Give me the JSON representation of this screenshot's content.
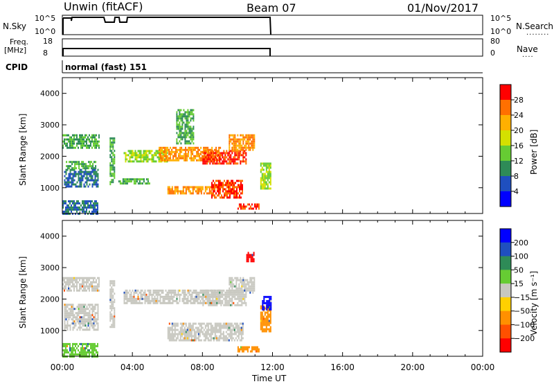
{
  "header": {
    "station": "Unwin (fitACF)",
    "beam": "Beam 07",
    "date": "01/Nov/2017"
  },
  "top_panels": {
    "nsky_label": "N.Sky",
    "nsky_ticks": [
      "10^5",
      "10^0"
    ],
    "nsearch_label": "N.Search",
    "nsearch_ticks": [
      "10^5",
      "10^0"
    ],
    "freq_label_1": "Freq.",
    "freq_label_2": "[MHz]",
    "freq_ticks": [
      "18",
      "8"
    ],
    "nave_label": "Nave",
    "nave_ticks": [
      "80",
      "0"
    ],
    "cpid_label": "CPID",
    "cpid_value": "normal (fast) 151"
  },
  "chart_data": [
    {
      "type": "heatmap",
      "panel": "power",
      "ylabel": "Slant Range [km]",
      "xlabel": "Time UT",
      "x_range_hours": [
        0,
        24
      ],
      "x_ticks": [
        "00:00",
        "04:00",
        "08:00",
        "12:00",
        "16:00",
        "20:00",
        "00:00"
      ],
      "ylim": [
        180,
        4500
      ],
      "y_ticks": [
        1000,
        2000,
        3000,
        4000
      ],
      "colorbar": {
        "label": "Power [dB]",
        "ticks": [
          "4",
          "8",
          "12",
          "16",
          "20",
          "24",
          "28"
        ],
        "colors": [
          "#0000ff",
          "#1f4fbf",
          "#2e8b57",
          "#66cc33",
          "#d4e000",
          "#ffb000",
          "#ff7000",
          "#ff0000"
        ]
      },
      "data_extent_hours": [
        0,
        12
      ],
      "regions": [
        {
          "t": [
            0.0,
            2.1
          ],
          "r": [
            2300,
            2700
          ],
          "level": 12
        },
        {
          "t": [
            0.1,
            2.0
          ],
          "r": [
            1050,
            1600
          ],
          "level": 8
        },
        {
          "t": [
            0.2,
            1.9
          ],
          "r": [
            1600,
            1850
          ],
          "level": 12
        },
        {
          "t": [
            2.7,
            3.0
          ],
          "r": [
            1100,
            2600
          ],
          "level": 12
        },
        {
          "t": [
            3.2,
            5.0
          ],
          "r": [
            1150,
            1300
          ],
          "level": 12
        },
        {
          "t": [
            3.5,
            6.0
          ],
          "r": [
            1850,
            2200
          ],
          "level": 16
        },
        {
          "t": [
            5.5,
            9.0
          ],
          "r": [
            1900,
            2300
          ],
          "level": 24
        },
        {
          "t": [
            8.0,
            10.5
          ],
          "r": [
            1800,
            2200
          ],
          "level": 28
        },
        {
          "t": [
            9.5,
            11.0
          ],
          "r": [
            2200,
            2700
          ],
          "level": 24
        },
        {
          "t": [
            6.0,
            8.5
          ],
          "r": [
            800,
            1050
          ],
          "level": 24
        },
        {
          "t": [
            8.5,
            10.3
          ],
          "r": [
            700,
            1250
          ],
          "level": 28
        },
        {
          "t": [
            10.0,
            11.2
          ],
          "r": [
            350,
            500
          ],
          "level": 28
        },
        {
          "t": [
            11.3,
            11.9
          ],
          "r": [
            1000,
            1800
          ],
          "level": 16
        },
        {
          "t": [
            6.5,
            7.5
          ],
          "r": [
            2400,
            3500
          ],
          "level": 12
        },
        {
          "t": [
            0.0,
            2.0
          ],
          "r": [
            200,
            600
          ],
          "level": 8
        }
      ]
    },
    {
      "type": "heatmap",
      "panel": "velocity",
      "ylabel": "Slant Range [km]",
      "xlabel": "Time UT",
      "x_range_hours": [
        0,
        24
      ],
      "x_ticks": [
        "00:00",
        "04:00",
        "08:00",
        "12:00",
        "16:00",
        "20:00",
        "00:00"
      ],
      "ylim": [
        180,
        4500
      ],
      "y_ticks": [
        1000,
        2000,
        3000,
        4000
      ],
      "colorbar": {
        "label": "Velocity [m s⁻¹]",
        "ticks": [
          "200",
          "100",
          "50",
          "15",
          "−15",
          "−50",
          "−100",
          "−200"
        ],
        "colors": [
          "#0000ff",
          "#1f4fbf",
          "#2e8b57",
          "#66cc33",
          "#c8c8c0",
          "#ffd000",
          "#ff9000",
          "#ff5000",
          "#ff0000"
        ]
      },
      "data_extent_hours": [
        0,
        12
      ],
      "regions": [
        {
          "t": [
            0.0,
            2.1
          ],
          "r": [
            2300,
            2700
          ],
          "level": 0
        },
        {
          "t": [
            0.1,
            2.0
          ],
          "r": [
            1050,
            1850
          ],
          "level": 0
        },
        {
          "t": [
            2.7,
            3.0
          ],
          "r": [
            1100,
            2600
          ],
          "level": 0
        },
        {
          "t": [
            3.5,
            9.0
          ],
          "r": [
            1850,
            2300
          ],
          "level": 0
        },
        {
          "t": [
            8.0,
            10.5
          ],
          "r": [
            1800,
            2300
          ],
          "level": 0
        },
        {
          "t": [
            9.5,
            11.0
          ],
          "r": [
            2200,
            2700
          ],
          "level": 0
        },
        {
          "t": [
            6.0,
            10.3
          ],
          "r": [
            700,
            1250
          ],
          "level": 0
        },
        {
          "t": [
            10.0,
            11.2
          ],
          "r": [
            350,
            500
          ],
          "level": -50
        },
        {
          "t": [
            11.3,
            11.9
          ],
          "r": [
            1000,
            1800
          ],
          "level": -50
        },
        {
          "t": [
            11.4,
            11.9
          ],
          "r": [
            1700,
            2100
          ],
          "level": 150
        },
        {
          "t": [
            10.5,
            10.9
          ],
          "r": [
            3200,
            3500
          ],
          "level": -200
        },
        {
          "t": [
            0.0,
            2.0
          ],
          "r": [
            200,
            600
          ],
          "level": 15
        }
      ]
    }
  ]
}
